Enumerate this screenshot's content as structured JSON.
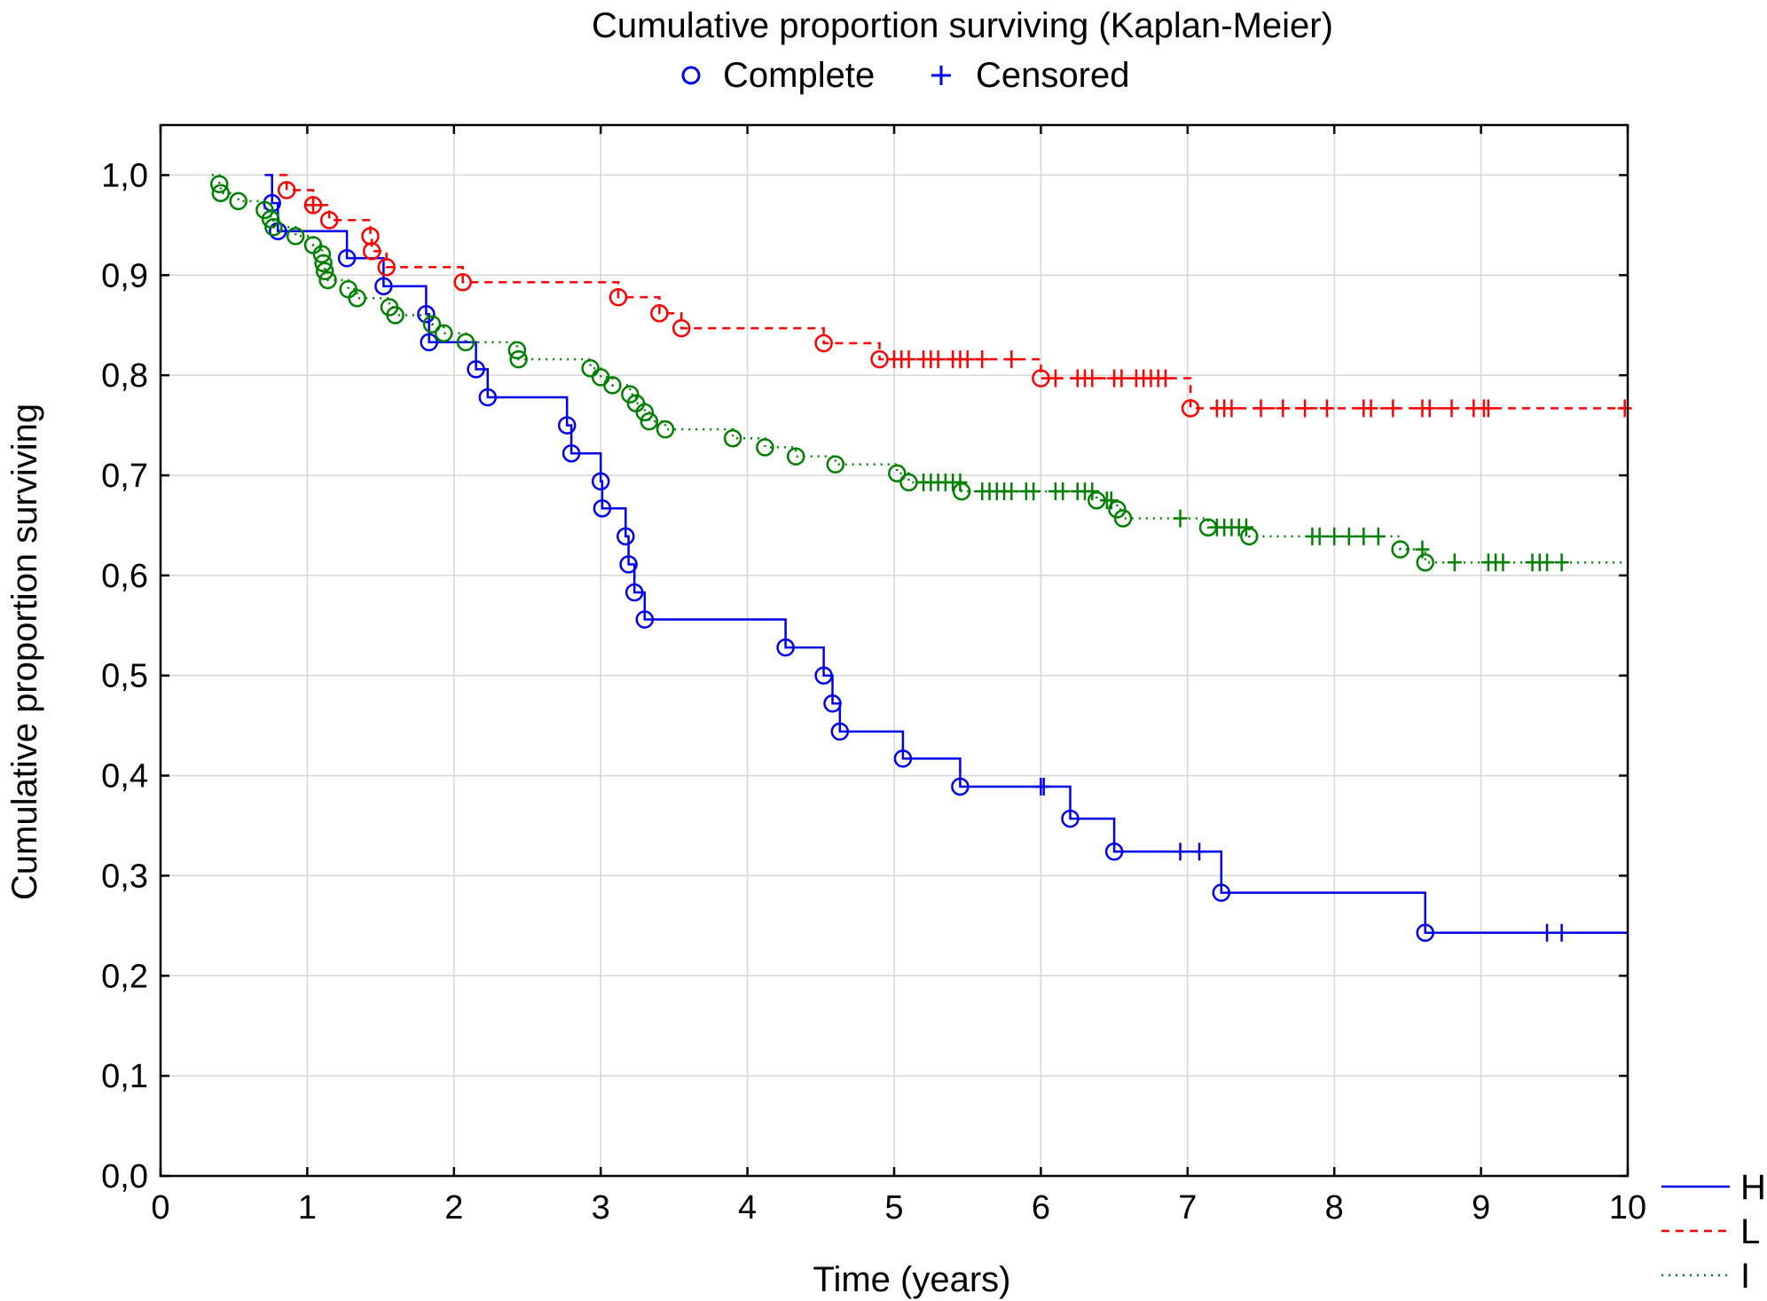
{
  "chart_data": {
    "type": "line",
    "title": "Cumulative proportion surviving (Kaplan-Meier)",
    "marker_legend": {
      "complete_label": "Complete",
      "censored_label": "Censored",
      "complete_marker": "circle-icon",
      "censored_marker": "plus-icon",
      "color": "#0000ff"
    },
    "xlabel": "Time (years)",
    "ylabel": "Cumulative proportion surviving",
    "xlim": [
      0,
      10
    ],
    "ylim": [
      0,
      1.05
    ],
    "x_ticks": [
      "0",
      "1",
      "2",
      "3",
      "4",
      "5",
      "6",
      "7",
      "8",
      "9",
      "10"
    ],
    "y_ticks": [
      "0,0",
      "0,1",
      "0,2",
      "0,3",
      "0,4",
      "0,5",
      "0,6",
      "0,7",
      "0,8",
      "0,9",
      "1,0"
    ],
    "grid": true,
    "legend_position": "bottom-right",
    "series": [
      {
        "name": "H",
        "color": "#0000ee",
        "dash": "solid",
        "start": 1.0,
        "end_time": 10,
        "events": [
          [
            0.76,
            0.972
          ],
          [
            0.8,
            0.944
          ],
          [
            1.27,
            0.917
          ],
          [
            1.52,
            0.889
          ],
          [
            1.81,
            0.861
          ],
          [
            1.83,
            0.833
          ],
          [
            2.15,
            0.806
          ],
          [
            2.23,
            0.778
          ],
          [
            2.77,
            0.75
          ],
          [
            2.8,
            0.722
          ],
          [
            3.0,
            0.694
          ],
          [
            3.01,
            0.667
          ],
          [
            3.17,
            0.639
          ],
          [
            3.19,
            0.611
          ],
          [
            3.23,
            0.583
          ],
          [
            3.3,
            0.556
          ],
          [
            4.26,
            0.528
          ],
          [
            4.52,
            0.5
          ],
          [
            4.58,
            0.472
          ],
          [
            4.63,
            0.444
          ],
          [
            5.06,
            0.417
          ],
          [
            5.45,
            0.389
          ],
          [
            6.2,
            0.357
          ],
          [
            6.5,
            0.324
          ],
          [
            7.23,
            0.283
          ],
          [
            8.62,
            0.243
          ]
        ],
        "censored": [
          6.0,
          6.02,
          6.95,
          7.08,
          9.45,
          9.55
        ]
      },
      {
        "name": "L",
        "color": "#ff0000",
        "dash": "dashed",
        "start": 1.0,
        "end_time": 10,
        "events": [
          [
            0.86,
            0.985
          ],
          [
            1.04,
            0.97
          ],
          [
            1.15,
            0.955
          ],
          [
            1.43,
            0.939
          ],
          [
            1.44,
            0.924
          ],
          [
            1.54,
            0.908
          ],
          [
            2.06,
            0.893
          ],
          [
            3.12,
            0.878
          ],
          [
            3.4,
            0.862
          ],
          [
            3.55,
            0.847
          ],
          [
            4.52,
            0.832
          ],
          [
            4.9,
            0.816
          ],
          [
            6.0,
            0.797
          ],
          [
            7.02,
            0.767
          ]
        ],
        "censored": [
          1.04,
          5.0,
          5.05,
          5.1,
          5.2,
          5.25,
          5.3,
          5.4,
          5.45,
          5.5,
          5.6,
          5.8,
          6.1,
          6.25,
          6.3,
          6.35,
          6.5,
          6.55,
          6.65,
          6.7,
          6.75,
          6.8,
          6.85,
          7.2,
          7.25,
          7.3,
          7.5,
          7.65,
          7.8,
          7.95,
          8.2,
          8.25,
          8.4,
          8.6,
          8.65,
          8.8,
          8.95,
          9.02,
          9.05,
          9.98
        ]
      },
      {
        "name": "I",
        "color": "#008000",
        "dash": "dotted",
        "start": 1.0,
        "end_time": 10,
        "events": [
          [
            0.4,
            0.991
          ],
          [
            0.41,
            0.982
          ],
          [
            0.53,
            0.974
          ],
          [
            0.71,
            0.965
          ],
          [
            0.75,
            0.956
          ],
          [
            0.77,
            0.948
          ],
          [
            0.92,
            0.939
          ],
          [
            1.04,
            0.93
          ],
          [
            1.1,
            0.921
          ],
          [
            1.11,
            0.912
          ],
          [
            1.12,
            0.904
          ],
          [
            1.14,
            0.895
          ],
          [
            1.28,
            0.886
          ],
          [
            1.34,
            0.877
          ],
          [
            1.56,
            0.868
          ],
          [
            1.6,
            0.86
          ],
          [
            1.85,
            0.851
          ],
          [
            1.93,
            0.842
          ],
          [
            2.08,
            0.833
          ],
          [
            2.43,
            0.825
          ],
          [
            2.44,
            0.816
          ],
          [
            2.93,
            0.807
          ],
          [
            3.0,
            0.798
          ],
          [
            3.08,
            0.79
          ],
          [
            3.2,
            0.781
          ],
          [
            3.24,
            0.772
          ],
          [
            3.3,
            0.763
          ],
          [
            3.33,
            0.754
          ],
          [
            3.44,
            0.746
          ],
          [
            3.9,
            0.737
          ],
          [
            4.12,
            0.728
          ],
          [
            4.33,
            0.719
          ],
          [
            4.6,
            0.711
          ],
          [
            5.02,
            0.702
          ],
          [
            5.1,
            0.693
          ],
          [
            5.46,
            0.684
          ],
          [
            6.38,
            0.675
          ],
          [
            6.52,
            0.666
          ],
          [
            6.56,
            0.657
          ],
          [
            7.14,
            0.648
          ],
          [
            7.42,
            0.639
          ],
          [
            8.45,
            0.626
          ],
          [
            8.62,
            0.613
          ]
        ],
        "censored": [
          5.2,
          5.25,
          5.3,
          5.35,
          5.4,
          5.45,
          5.6,
          5.65,
          5.7,
          5.75,
          5.8,
          5.9,
          5.95,
          6.1,
          6.15,
          6.25,
          6.3,
          6.35,
          6.45,
          6.48,
          6.95,
          7.2,
          7.25,
          7.3,
          7.35,
          7.4,
          7.85,
          7.9,
          8.0,
          8.1,
          8.2,
          8.3,
          8.6,
          8.82,
          9.05,
          9.1,
          9.15,
          9.35,
          9.4,
          9.45,
          9.55
        ]
      }
    ]
  }
}
